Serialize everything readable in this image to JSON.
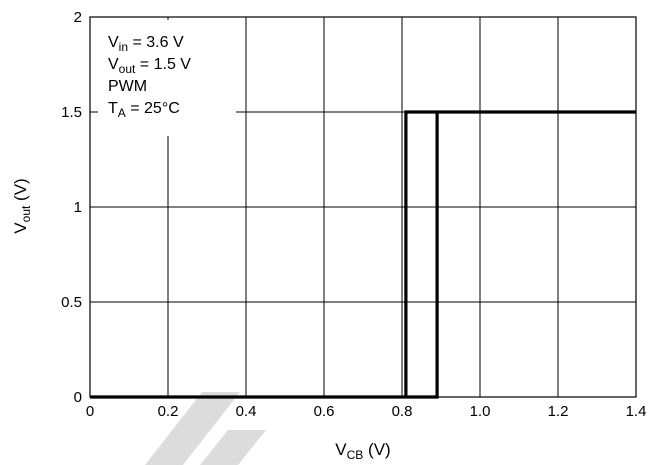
{
  "chart_data": {
    "type": "line",
    "x_axis": {
      "label_main": "V",
      "label_sub": "CB",
      "label_unit": " (V)",
      "range": [
        0,
        1.4
      ],
      "ticks": [
        0,
        0.2,
        0.4,
        0.6,
        0.8,
        1.0,
        1.2,
        1.4
      ],
      "tick_labels": [
        "0",
        "0.2",
        "0.4",
        "0.6",
        "0.8",
        "1.0",
        "1.2",
        "1.4"
      ]
    },
    "y_axis": {
      "label_main": "V",
      "label_sub": "out",
      "label_unit": " (V)",
      "range": [
        0,
        2
      ],
      "ticks": [
        0,
        0.5,
        1,
        1.5,
        2
      ],
      "tick_labels": [
        "0",
        "0.5",
        "1",
        "1.5",
        "2"
      ]
    },
    "grid": true,
    "annotations": [
      {
        "main": "V",
        "sub": "in",
        "rest": " = 3.6 V"
      },
      {
        "main": "V",
        "sub": "out",
        "rest": " = 1.5 V"
      },
      {
        "main": "PWM",
        "sub": "",
        "rest": ""
      },
      {
        "main": "T",
        "sub": "A",
        "rest": " = 25°C"
      }
    ],
    "series": [
      {
        "line_color": "#000000",
        "x": [
          0,
          0.81,
          0.81,
          1.4,
          1.4,
          0.89,
          0.89,
          0
        ],
        "y": [
          0,
          0,
          1.5,
          1.5,
          1.5,
          1.5,
          0,
          0
        ]
      }
    ],
    "colors": {
      "line": "#000000",
      "grid": "#000000",
      "watermark": "#dcdcdc"
    }
  }
}
